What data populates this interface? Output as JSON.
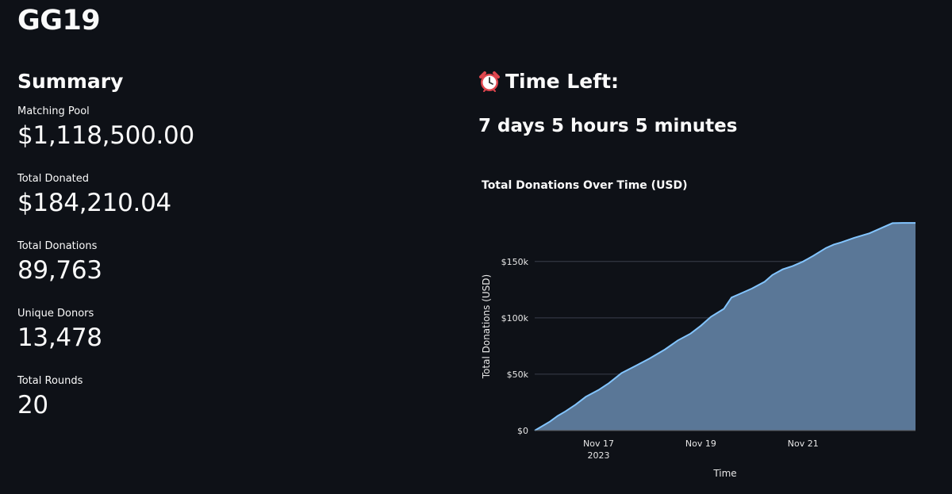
{
  "app": {
    "title": "GG19"
  },
  "summary": {
    "heading": "Summary",
    "metrics": [
      {
        "label": "Matching Pool",
        "value": "$1,118,500.00"
      },
      {
        "label": "Total Donated",
        "value": "$184,210.04"
      },
      {
        "label": "Total Donations",
        "value": "89,763"
      },
      {
        "label": "Unique Donors",
        "value": "13,478"
      },
      {
        "label": "Total Rounds",
        "value": "20"
      }
    ]
  },
  "time_left": {
    "icon": "alarm-clock-icon",
    "heading": "Time Left:",
    "value": "7 days 5 hours 5 minutes"
  },
  "chart_data": {
    "type": "area",
    "title": "Total Donations Over Time (USD)",
    "xlabel": "Time",
    "ylabel": "Total Donations (USD)",
    "x_ticks": [
      {
        "label": "Nov 17",
        "sublabel": "2023",
        "day": 17
      },
      {
        "label": "Nov 19",
        "day": 19
      },
      {
        "label": "Nov 21",
        "day": 21
      }
    ],
    "y_ticks": [
      {
        "label": "$0",
        "value": 0
      },
      {
        "label": "$50k",
        "value": 50000
      },
      {
        "label": "$100k",
        "value": 100000
      },
      {
        "label": "$150k",
        "value": 150000
      }
    ],
    "xlim": [
      15.75,
      23.2
    ],
    "ylim": [
      0,
      185000
    ],
    "grid": true,
    "colors": {
      "line": "#83c5ff",
      "fill": "#5a7797"
    },
    "x": [
      15.75,
      16.05,
      16.2,
      16.35,
      16.55,
      16.75,
      17.0,
      17.2,
      17.45,
      17.75,
      18.0,
      18.3,
      18.55,
      18.8,
      19.0,
      19.2,
      19.45,
      19.6,
      19.75,
      20.0,
      20.25,
      20.4,
      20.6,
      20.8,
      21.0,
      21.2,
      21.45,
      21.6,
      21.75,
      22.0,
      22.3,
      22.55,
      22.75,
      22.95,
      23.2
    ],
    "y": [
      0,
      8000,
      13000,
      17000,
      23000,
      30000,
      36000,
      42000,
      51000,
      58000,
      64000,
      72000,
      80000,
      86000,
      93000,
      101000,
      108000,
      118000,
      121000,
      126000,
      132000,
      138000,
      143000,
      146000,
      150000,
      155000,
      162000,
      165000,
      167000,
      171000,
      175000,
      180000,
      184000,
      184200,
      184210
    ]
  }
}
